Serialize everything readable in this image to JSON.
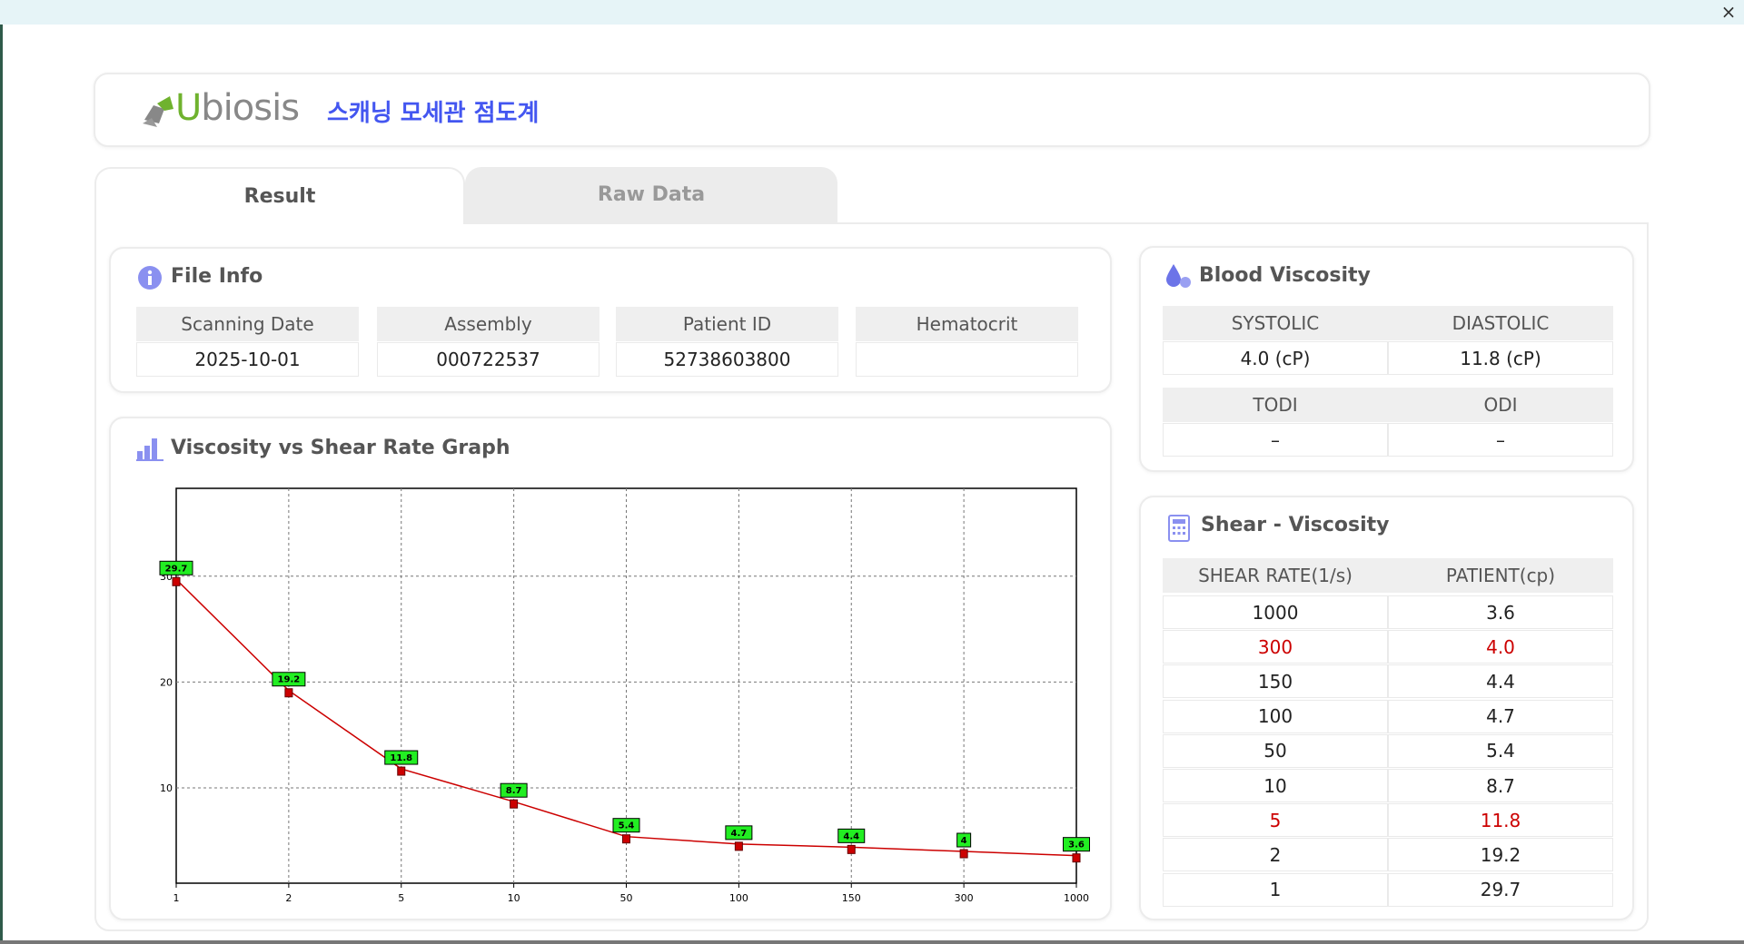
{
  "window": {
    "close": "×"
  },
  "header": {
    "logo": "Ubiosis",
    "title": "스캐닝 모세관 점도계"
  },
  "tabs": [
    "Result",
    "Raw Data"
  ],
  "file_info": {
    "title": "File Info",
    "columns": [
      "Scanning Date",
      "Assembly",
      "Patient ID",
      "Hematocrit"
    ],
    "values": [
      "2025-10-01",
      "000722537",
      "52738603800"
    ]
  },
  "graph": {
    "title": "Viscosity vs Shear Rate Graph"
  },
  "chart_data": {
    "type": "line",
    "categories": [
      "1",
      "2",
      "5",
      "10",
      "50",
      "100",
      "150",
      "300",
      "1000"
    ],
    "values": [
      29.7,
      19.2,
      11.8,
      8.7,
      5.4,
      4.7,
      4.4,
      4,
      3.6
    ],
    "color": "#cc0000",
    "label_color": "#22ee22",
    "ylim": [
      1,
      38.3
    ],
    "yticks": [
      10,
      20,
      30
    ],
    "grid": true
  },
  "blood_viscosity": {
    "title": "Blood Viscosity",
    "tables": [
      {
        "headers": [
          "SYSTOLIC",
          "DIASTOLIC"
        ],
        "values": [
          "4.0 (cP)",
          "11.8 (cP)"
        ]
      },
      {
        "headers": [
          "TODI",
          "ODI"
        ],
        "values": [
          "–",
          "–"
        ]
      }
    ]
  },
  "shear_viscosity": {
    "title": "Shear - Viscosity",
    "headers": [
      "SHEAR RATE(1/s)",
      "PATIENT(cp)"
    ],
    "rows": [
      {
        "cells": [
          "1000",
          "3.6"
        ]
      },
      {
        "cells": [
          "300",
          "4.0"
        ],
        "color": "#cc0000"
      },
      {
        "cells": [
          "150",
          "4.4"
        ]
      },
      {
        "cells": [
          "100",
          "4.7"
        ]
      },
      {
        "cells": [
          "50",
          "5.4"
        ]
      },
      {
        "cells": [
          "10",
          "8.7"
        ]
      },
      {
        "cells": [
          "5",
          "11.8"
        ],
        "color": "#cc0000"
      },
      {
        "cells": [
          "2",
          "19.2"
        ]
      },
      {
        "cells": [
          "1",
          "29.7"
        ]
      }
    ]
  }
}
